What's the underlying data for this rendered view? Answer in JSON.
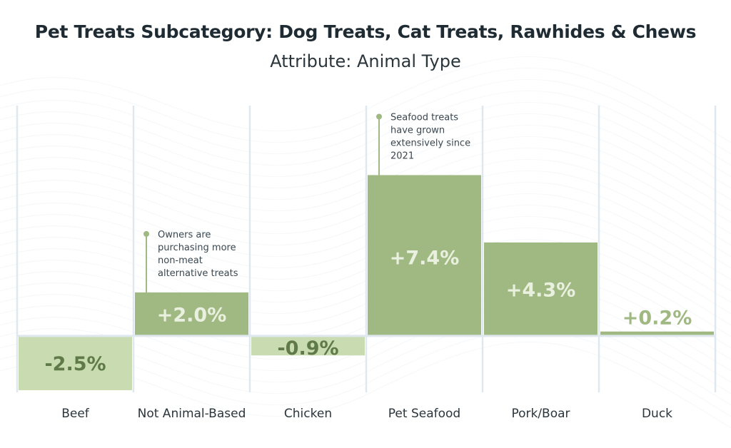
{
  "chart_data": {
    "type": "bar",
    "title": "Pet Treats Subcategory: Dog Treats, Cat Treats, Rawhides & Chews",
    "subtitle": "Attribute: Animal Type",
    "categories": [
      "Beef",
      "Not Animal-Based",
      "Chicken",
      "Pet Seafood",
      "Pork/Boar",
      "Duck"
    ],
    "values": [
      -2.5,
      2.0,
      -0.9,
      7.4,
      4.3,
      0.2
    ],
    "data_labels": [
      "-2.5%",
      "+2.0%",
      "-0.9%",
      "+7.4%",
      "+4.3%",
      "+0.2%"
    ],
    "ylim": [
      -2.6,
      10.6
    ],
    "grid": "vertical category dividers",
    "annotations": [
      {
        "category": "Not Animal-Based",
        "lines": [
          "Owners are",
          "purchasing more",
          "non-meat",
          "alternative treats"
        ]
      },
      {
        "category": "Pet Seafood",
        "lines": [
          "Seafood treats",
          "have grown",
          "extensively since",
          "2021"
        ]
      }
    ],
    "colors": {
      "positive": "#a0b982",
      "negative": "#c9dbb0",
      "positive_label": "#eaf0df",
      "negative_label": "#5f7a48",
      "small_label": "#a0b982",
      "grid": "#dfe8ef",
      "annotation_text": "#3a4750"
    }
  }
}
